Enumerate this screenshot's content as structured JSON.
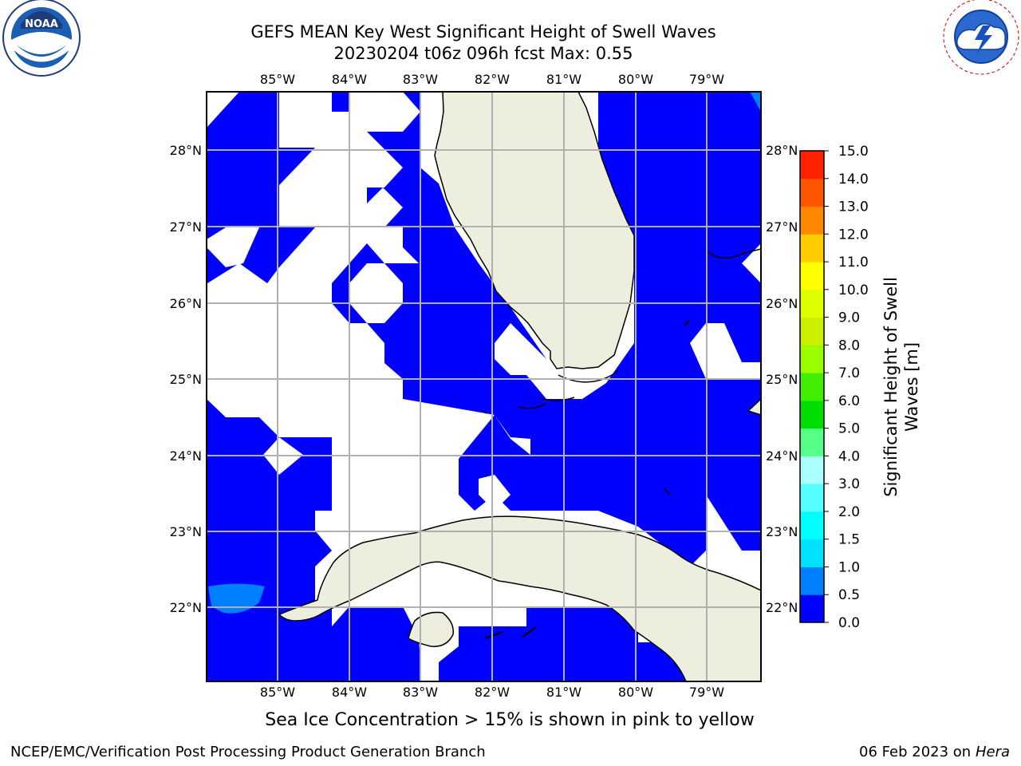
{
  "header": {
    "title_line1": "GEFS MEAN Key West Significant Height of Swell Waves",
    "title_line2": "20230204 t06z 096h fcst   Max: 0.55"
  },
  "logos": {
    "left": {
      "name": "noaa-logo",
      "text": "NOAA",
      "ring_text": "NATIONAL OCEANIC AND ATMOSPHERIC ADMINISTRATION · U.S. DEPARTMENT OF COMMERCE"
    },
    "right": {
      "name": "national-weather-service-logo",
      "ring_text": "NATIONAL WEATHER SERVICE"
    }
  },
  "map": {
    "lon_labels": [
      "85°W",
      "84°W",
      "83°W",
      "82°W",
      "81°W",
      "80°W",
      "79°W"
    ],
    "lat_labels": [
      "28°N",
      "27°N",
      "26°N",
      "25°N",
      "24°N",
      "23°N",
      "22°N"
    ],
    "colors": {
      "land": "#eeeedf",
      "swell_0_05": "#0000ff",
      "swell_05_10": "#0080ff",
      "grid": "#b0b0b0",
      "coast": "#000000"
    }
  },
  "colorbar": {
    "label_line1": "Significant Height of Swell",
    "label_line2": "Waves [m]",
    "ticks": [
      "0.0",
      "0.5",
      "1.0",
      "1.5",
      "2.0",
      "3.0",
      "4.0",
      "5.0",
      "6.0",
      "7.0",
      "8.0",
      "9.0",
      "10.0",
      "11.0",
      "12.0",
      "13.0",
      "14.0",
      "15.0"
    ],
    "colors": [
      "#0000ff",
      "#0080ff",
      "#00e0ff",
      "#00ffff",
      "#55ffff",
      "#aaffff",
      "#55ff88",
      "#00dd00",
      "#44ee00",
      "#99ff00",
      "#ccee00",
      "#ddff00",
      "#ffff00",
      "#ffcc00",
      "#ff8800",
      "#ff5500",
      "#ff2200"
    ]
  },
  "note": "Sea Ice Concentration > 15% is shown in pink to yellow",
  "footer": {
    "left": "NCEP/EMC/Verification Post Processing Product Generation Branch",
    "right_date": "06 Feb 2023 on",
    "right_host": "Hera"
  }
}
